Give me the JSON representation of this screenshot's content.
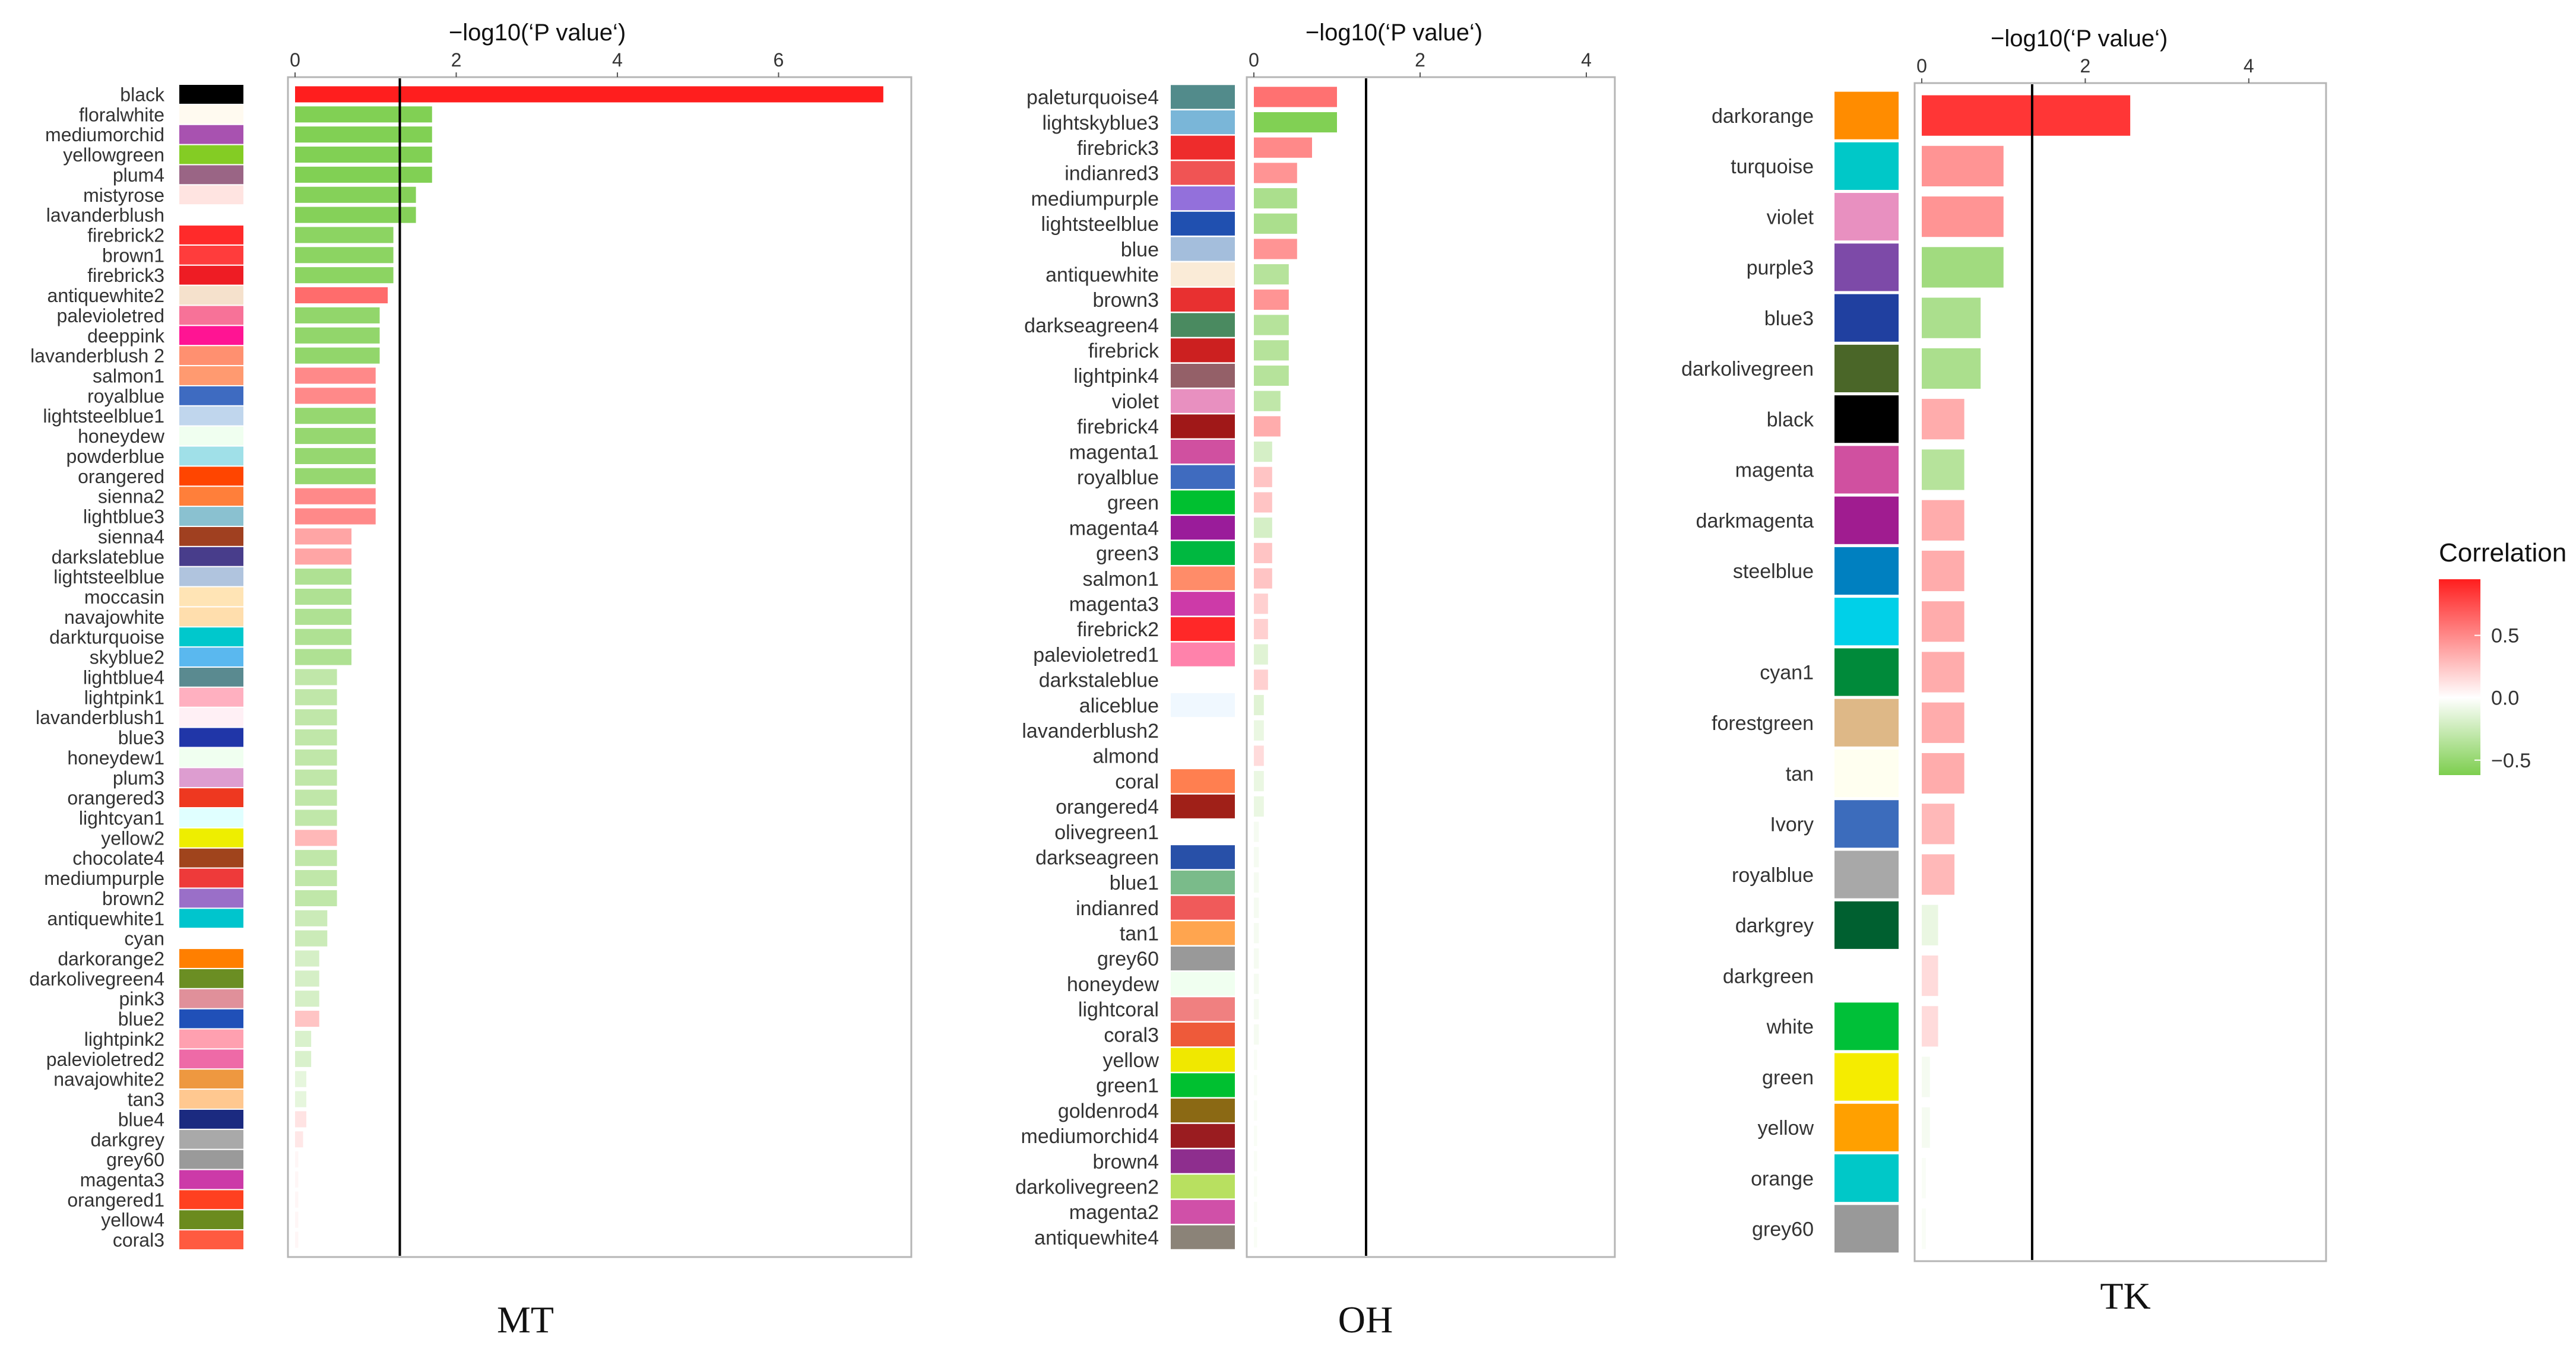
{
  "legend": {
    "title": "Correlation",
    "ticks": [
      {
        "value": 0.5,
        "label": "0.5"
      },
      {
        "value": 0.0,
        "label": "0.0"
      },
      {
        "value": -0.5,
        "label": "−0.5"
      }
    ],
    "range": [
      -0.62,
      0.95
    ],
    "colors": {
      "pos": "#ff1e1e",
      "mid": "#ffffff",
      "neg": "#7dce4e"
    }
  },
  "chart_data": [
    {
      "type": "bar",
      "orientation": "horizontal",
      "caption": "MT",
      "xlabel": "−log10(‘P value‘)",
      "xlim": [
        0,
        7.5
      ],
      "xticks": [
        0,
        2,
        4,
        6
      ],
      "threshold": 1.3,
      "categories": [
        "black",
        "floralwhite",
        "mediumorchid",
        "yellowgreen",
        "plum4",
        "mistyrose",
        "lavanderblush",
        "firebrick2",
        "brown1",
        "firebrick3",
        "antiquewhite2",
        "palevioletred",
        "deeppink",
        "lavanderblush 2",
        "salmon1",
        "royalblue",
        "lightsteelblue1",
        "honeydew",
        "powderblue",
        "orangered",
        "sienna2",
        "lightblue3",
        "sienna4",
        "darkslateblue",
        "lightsteelblue",
        "moccasin",
        "navajowhite",
        "darkturquoise",
        "skyblue2",
        "lightblue4",
        "lightpink1",
        "lavanderblush1",
        "blue3",
        "honeydew1",
        "plum3",
        "orangered3",
        "lightcyan1",
        "yellow2",
        "chocolate4",
        "mediumpurple",
        "brown2",
        "antiquewhite1",
        "cyan",
        "darkorange2",
        "darkolivegreen4",
        "pink3",
        "blue2",
        "lightpink2",
        "palevioletred2",
        "navajowhite2",
        "tan3",
        "blue4",
        "darkgrey",
        "grey60",
        "magenta3",
        "orangered1",
        "yellow4",
        "coral3"
      ],
      "module_colors": [
        "#000000",
        "#fffaf0",
        "#a852b0",
        "#84cc24",
        "#9a6585",
        "#ffe4e1",
        "#ffffff",
        "#ff2a2a",
        "#ff3c3c",
        "#ee1c24",
        "#f5e1cc",
        "#f77298",
        "#ff1493",
        "#ff9070",
        "#ff9a70",
        "#3e6bc1",
        "#c0d6ed",
        "#f0fff0",
        "#a0e0e8",
        "#ff4500",
        "#ff7f3a",
        "#8ac1d0",
        "#a04020",
        "#483d8b",
        "#b0c4de",
        "#ffe4b5",
        "#ffdead",
        "#00c8cc",
        "#5ab8ef",
        "#5a8a90",
        "#ffb0c0",
        "#fff0f5",
        "#2036a8",
        "#f0fff0",
        "#dd9dd0",
        "#ee3820",
        "#e0ffff",
        "#eeee00",
        "#a0441c",
        "#ee3a3a",
        "#9a6fc8",
        "#00c5cd",
        "#ffffff",
        "#ff7f00",
        "#6b8e23",
        "#e0909a",
        "#2050b8",
        "#ffa0b0",
        "#ee6aa7",
        "#ee9840",
        "#ffc890",
        "#1b2a80",
        "#a9a9a9",
        "#9a9a9a",
        "#cc3aa8",
        "#ff4020",
        "#6b8b1e",
        "#ff5a40"
      ],
      "pvals": [
        7.3,
        1.7,
        1.7,
        1.7,
        1.7,
        1.5,
        1.5,
        1.22,
        1.22,
        1.22,
        1.15,
        1.05,
        1.05,
        1.05,
        1.0,
        1.0,
        1.0,
        1.0,
        1.0,
        1.0,
        1.0,
        1.0,
        0.7,
        0.7,
        0.7,
        0.7,
        0.7,
        0.7,
        0.7,
        0.52,
        0.52,
        0.52,
        0.52,
        0.52,
        0.52,
        0.52,
        0.52,
        0.52,
        0.52,
        0.52,
        0.52,
        0.4,
        0.4,
        0.3,
        0.3,
        0.3,
        0.3,
        0.2,
        0.2,
        0.14,
        0.14,
        0.14,
        0.1,
        0.04,
        0.04,
        0.04,
        0.04,
        0.04
      ],
      "correlation": [
        0.95,
        -0.6,
        -0.6,
        -0.6,
        -0.6,
        -0.58,
        -0.58,
        -0.55,
        -0.55,
        -0.55,
        0.62,
        -0.52,
        -0.52,
        -0.52,
        0.5,
        0.5,
        -0.5,
        -0.5,
        -0.5,
        -0.5,
        0.5,
        0.5,
        0.38,
        0.38,
        -0.38,
        -0.38,
        -0.38,
        -0.38,
        -0.38,
        -0.3,
        -0.3,
        -0.3,
        -0.3,
        -0.3,
        -0.3,
        -0.3,
        -0.3,
        0.3,
        -0.3,
        -0.3,
        -0.3,
        -0.25,
        -0.25,
        -0.2,
        -0.2,
        -0.2,
        0.25,
        -0.18,
        -0.18,
        -0.12,
        -0.12,
        0.12,
        0.1,
        0.04,
        0.04,
        0.04,
        0.04,
        0.04
      ]
    },
    {
      "type": "bar",
      "orientation": "horizontal",
      "caption": "OH",
      "xlabel": "−log10(‘P value‘)",
      "xlim": [
        0,
        4.2
      ],
      "xticks": [
        0,
        2,
        4
      ],
      "threshold": 1.35,
      "categories": [
        "paleturquoise4",
        "lightskyblue3",
        "firebrick3",
        "indianred3",
        "mediumpurple",
        "lightsteelblue",
        "blue",
        "antiquewhite",
        "brown3",
        "darkseagreen4",
        "firebrick",
        "lightpink4",
        "violet",
        "firebrick4",
        "magenta1",
        "royalblue",
        "green",
        "magenta4",
        "green3",
        "salmon1",
        "magenta3",
        "firebrick2",
        "palevioletred1",
        "darkstaleblue",
        "aliceblue",
        "lavanderblush2",
        "almond",
        "coral",
        "orangered4",
        "olivegreen1",
        "darkseagreen",
        "blue1",
        "indianred",
        "tan1",
        "grey60",
        "honeydew",
        "lightcoral",
        "coral3",
        "yellow",
        "green1",
        "goldenrod4",
        "mediumorchid4",
        "brown4",
        "darkolivegreen2",
        "magenta2",
        "antiquewhite4"
      ],
      "module_colors": [
        "#528b8b",
        "#7ab6d8",
        "#ee2c2c",
        "#f05454",
        "#9370db",
        "#2050b0",
        "#a4bedc",
        "#faebd7",
        "#e83030",
        "#4a8a60",
        "#cc2020",
        "#946068",
        "#e890c0",
        "#a01818",
        "#d050a0",
        "#3f6bbf",
        "#00c030",
        "#9a1c9a",
        "#00b840",
        "#ff8c69",
        "#cd3aa8",
        "#ff2828",
        "#ff82ab",
        "#ffffff",
        "#f0f8ff",
        "#ffffff",
        "#ffffff",
        "#ff7f50",
        "#a02018",
        "#ffffff",
        "#2850a8",
        "#7abb8a",
        "#f05a5a",
        "#ffa54f",
        "#999999",
        "#f0fff0",
        "#f08080",
        "#ee5a3a",
        "#f0e800",
        "#00c030",
        "#8b6914",
        "#9a1c20",
        "#8e2e8e",
        "#b8e060",
        "#d050a8",
        "#8b8378"
      ],
      "pvals": [
        1.0,
        1.0,
        0.7,
        0.52,
        0.52,
        0.52,
        0.52,
        0.42,
        0.42,
        0.42,
        0.42,
        0.42,
        0.32,
        0.32,
        0.22,
        0.22,
        0.22,
        0.22,
        0.22,
        0.22,
        0.17,
        0.17,
        0.17,
        0.17,
        0.12,
        0.12,
        0.12,
        0.12,
        0.12,
        0.06,
        0.06,
        0.06,
        0.06,
        0.06,
        0.06,
        0.06,
        0.06,
        0.06,
        0.04,
        0.04,
        0.04,
        0.04,
        0.04,
        0.04,
        0.04,
        0.04
      ],
      "correlation": [
        0.6,
        -0.6,
        0.5,
        0.45,
        -0.4,
        -0.4,
        0.45,
        -0.35,
        0.45,
        -0.35,
        -0.35,
        -0.35,
        -0.3,
        0.35,
        -0.2,
        0.25,
        0.25,
        -0.2,
        0.25,
        0.25,
        0.2,
        0.2,
        -0.15,
        0.2,
        -0.15,
        -0.1,
        0.15,
        -0.1,
        -0.1,
        -0.05,
        -0.05,
        -0.05,
        -0.05,
        -0.05,
        -0.05,
        -0.05,
        -0.05,
        -0.05,
        -0.03,
        -0.03,
        -0.03,
        -0.03,
        -0.03,
        -0.03,
        -0.03,
        -0.03
      ]
    },
    {
      "type": "bar",
      "orientation": "horizontal",
      "caption": "TK",
      "xlabel": "−log10(‘P value‘)",
      "xlim": [
        0,
        4.8
      ],
      "xticks": [
        0,
        2,
        4
      ],
      "threshold": 1.35,
      "categories": [
        "darkorange",
        "turquoise",
        "violet",
        "purple3",
        "blue3",
        "darkolivegreen",
        "black",
        "magenta",
        "darkmagenta",
        "steelblue",
        "",
        "cyan1",
        "forestgreen",
        "tan",
        "Ivory",
        "royalblue",
        "darkgrey",
        "darkgreen",
        "white",
        "green",
        "yellow",
        "orange",
        "grey60"
      ],
      "module_colors": [
        "#ff8c00",
        "#00c8c8",
        "#e890c0",
        "#7d4aa8",
        "#2040a0",
        "#4a6628",
        "#000000",
        "#d050a0",
        "#a01c90",
        "#0080c0",
        "#00d0e8",
        "#008a3a",
        "#deb887",
        "#fffff0",
        "#3c6cbc",
        "#a8a8a8",
        "#006030",
        "#ffffff",
        "#00c038",
        "#f5ec00",
        "#ffa000",
        "#00c8c8",
        "#999999"
      ],
      "pvals": [
        2.55,
        1.0,
        1.0,
        1.0,
        0.72,
        0.72,
        0.52,
        0.52,
        0.52,
        0.52,
        0.52,
        0.52,
        0.52,
        0.52,
        0.4,
        0.4,
        0.2,
        0.2,
        0.2,
        0.1,
        0.1,
        0.05,
        0.05
      ],
      "correlation": [
        0.85,
        0.45,
        0.45,
        -0.45,
        -0.4,
        -0.4,
        0.35,
        -0.35,
        0.35,
        0.35,
        0.35,
        0.35,
        0.35,
        0.35,
        0.3,
        0.3,
        -0.1,
        0.15,
        0.15,
        -0.05,
        -0.05,
        -0.03,
        -0.03
      ]
    }
  ]
}
